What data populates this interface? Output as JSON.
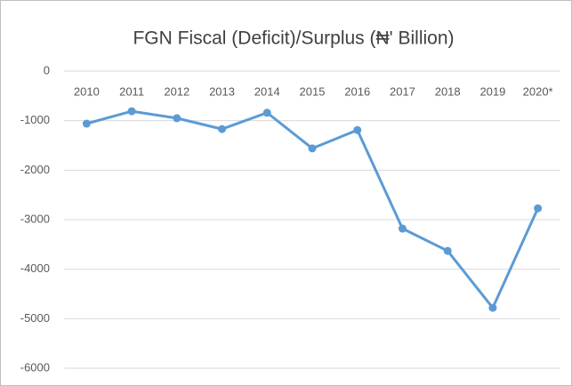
{
  "chart_data": {
    "type": "line",
    "title": "FGN Fiscal (Deficit)/Surplus (₦' Billion)",
    "categories": [
      "2010",
      "2011",
      "2012",
      "2013",
      "2014",
      "2015",
      "2016",
      "2017",
      "2018",
      "2019",
      "2020*"
    ],
    "series": [
      {
        "name": "FGN Fiscal (Deficit)/Surplus",
        "color": "#5b9bd5",
        "values": [
          -1060,
          -810,
          -950,
          -1170,
          -840,
          -1560,
          -1190,
          -3180,
          -3630,
          -4780,
          -2770
        ]
      }
    ],
    "ylim": [
      -6000,
      0
    ],
    "yticks": [
      0,
      -1000,
      -2000,
      -3000,
      -4000,
      -5000,
      -6000
    ],
    "grid": true
  }
}
